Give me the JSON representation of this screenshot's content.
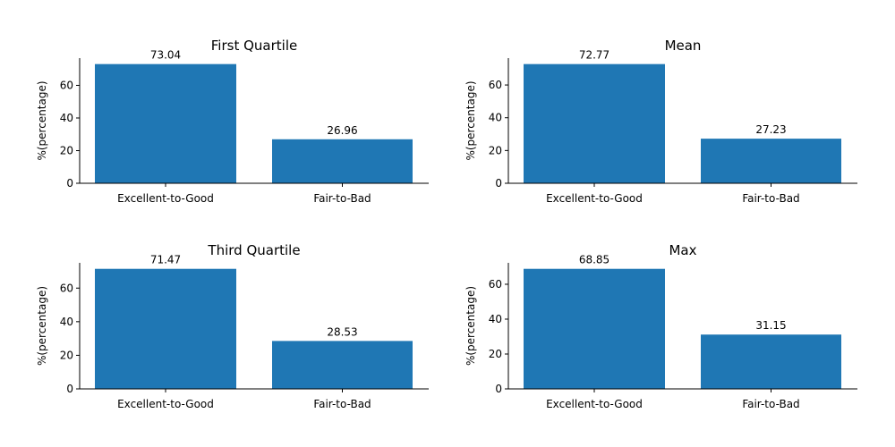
{
  "chart_data": [
    {
      "type": "bar",
      "title": "First Quartile",
      "categories": [
        "Excellent-to-Good",
        "Fair-to-Bad"
      ],
      "values": [
        73.04,
        26.96
      ],
      "value_labels": [
        "73.04",
        "26.96"
      ],
      "xlabel": "",
      "ylabel": "%(percentage)",
      "ylim": [
        0,
        76.69
      ],
      "yticks": [
        0,
        20,
        40,
        60
      ],
      "grid": false,
      "bar_color": "#1f77b4"
    },
    {
      "type": "bar",
      "title": "Mean",
      "categories": [
        "Excellent-to-Good",
        "Fair-to-Bad"
      ],
      "values": [
        72.77,
        27.23
      ],
      "value_labels": [
        "72.77",
        "27.23"
      ],
      "xlabel": "",
      "ylabel": "%(percentage)",
      "ylim": [
        0,
        76.41
      ],
      "yticks": [
        0,
        20,
        40,
        60
      ],
      "grid": false,
      "bar_color": "#1f77b4"
    },
    {
      "type": "bar",
      "title": "Third Quartile",
      "categories": [
        "Excellent-to-Good",
        "Fair-to-Bad"
      ],
      "values": [
        71.47,
        28.53
      ],
      "value_labels": [
        "71.47",
        "28.53"
      ],
      "xlabel": "",
      "ylabel": "%(percentage)",
      "ylim": [
        0,
        75.04
      ],
      "yticks": [
        0,
        20,
        40,
        60
      ],
      "grid": false,
      "bar_color": "#1f77b4"
    },
    {
      "type": "bar",
      "title": "Max",
      "categories": [
        "Excellent-to-Good",
        "Fair-to-Bad"
      ],
      "values": [
        68.85,
        31.15
      ],
      "value_labels": [
        "68.85",
        "31.15"
      ],
      "xlabel": "",
      "ylabel": "%(percentage)",
      "ylim": [
        0,
        72.29
      ],
      "yticks": [
        0,
        20,
        40,
        60
      ],
      "grid": false,
      "bar_color": "#1f77b4"
    }
  ]
}
